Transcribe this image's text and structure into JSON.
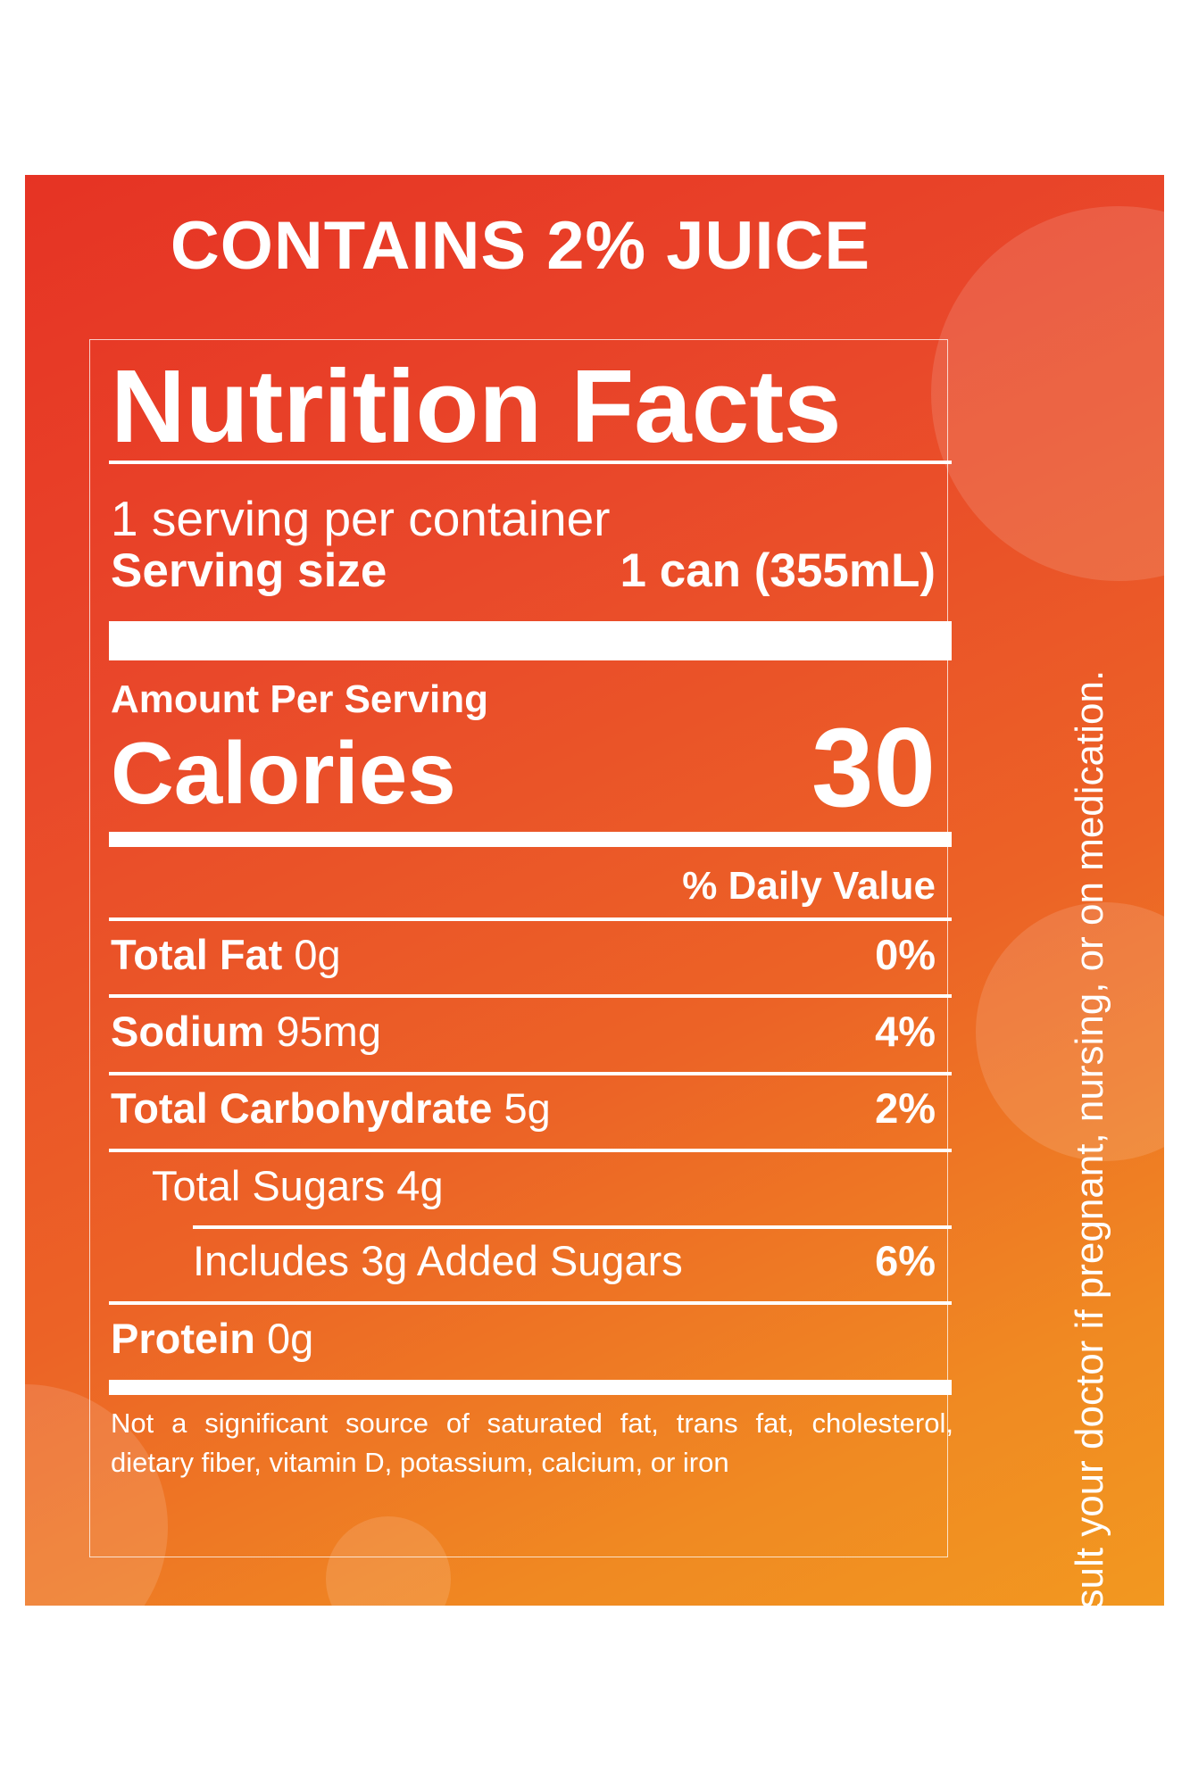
{
  "banner": "CONTAINS 2% JUICE",
  "label": {
    "title": "Nutrition Facts",
    "servings_per_container": "1 serving per container",
    "serving_size_label": "Serving size",
    "serving_size_value": "1 can (355mL)",
    "amount_per_serving": "Amount Per Serving",
    "calories_label": "Calories",
    "calories_value": "30",
    "daily_value_header": "% Daily Value",
    "nutrients": [
      {
        "name": "Total Fat",
        "amount": "0g",
        "dv": "0%"
      },
      {
        "name": "Sodium",
        "amount": "95mg",
        "dv": "4%"
      },
      {
        "name": "Total Carbohydrate",
        "amount": "5g",
        "dv": "2%"
      },
      {
        "name": "Total Sugars 4g",
        "amount": "",
        "dv": ""
      },
      {
        "name": "Includes 3g Added Sugars",
        "amount": "",
        "dv": "6%"
      },
      {
        "name": "Protein",
        "amount": "0g",
        "dv": ""
      }
    ],
    "footnote": "Not a significant source of saturated fat, trans fat, cholesterol, dietary fiber, vitamin D, potassium, calcium, or iron"
  },
  "side_note": "Consult your doctor if pregnant, nursing, or on medication.",
  "colors": {
    "panel_gradient_start": "#e63324",
    "panel_gradient_end": "#f29820",
    "text": "#ffffff"
  }
}
